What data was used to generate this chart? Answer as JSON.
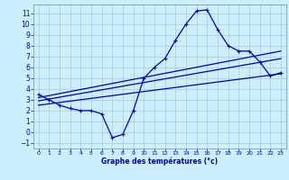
{
  "xlabel": "Graphe des températures (°c)",
  "background_color": "#cceeff",
  "grid_color": "#aacccc",
  "line_color": "#0000bb",
  "ylim": [
    -1.5,
    11.8
  ],
  "xlim": [
    -0.5,
    23.5
  ],
  "yticks": [
    -1,
    0,
    1,
    2,
    3,
    4,
    5,
    6,
    7,
    8,
    9,
    10,
    11
  ],
  "xticks": [
    0,
    1,
    2,
    3,
    4,
    5,
    6,
    7,
    8,
    9,
    10,
    11,
    12,
    13,
    14,
    15,
    16,
    17,
    18,
    19,
    20,
    21,
    22,
    23
  ],
  "main_series_x": [
    0,
    1,
    2,
    3,
    4,
    5,
    6,
    7,
    8,
    9,
    10,
    11,
    12,
    13,
    14,
    15,
    16,
    17,
    18,
    19,
    20,
    21,
    22,
    23
  ],
  "main_series_y": [
    3.5,
    3.0,
    2.5,
    2.2,
    2.0,
    2.0,
    1.7,
    -0.5,
    -0.2,
    2.0,
    5.0,
    6.0,
    6.8,
    8.5,
    10.0,
    11.2,
    11.3,
    9.5,
    8.0,
    7.5,
    7.5,
    6.5,
    5.2,
    5.5
  ],
  "trend_lines": [
    {
      "x": [
        0,
        23
      ],
      "y": [
        3.2,
        7.5
      ]
    },
    {
      "x": [
        0,
        23
      ],
      "y": [
        2.9,
        6.8
      ]
    },
    {
      "x": [
        0,
        23
      ],
      "y": [
        2.5,
        5.4
      ]
    }
  ]
}
